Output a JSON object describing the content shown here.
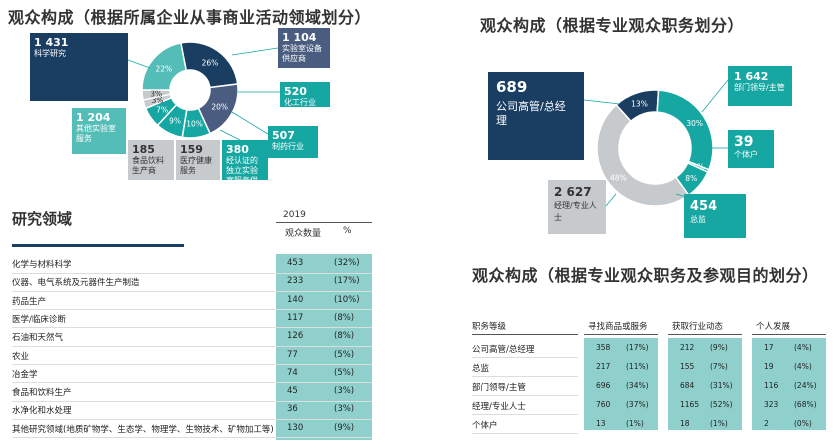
{
  "left_top": {
    "title": "观众构成（根据所属企业从事商业活动领域划分）",
    "boxes": [
      {
        "num": "1 431",
        "label": "科学研究"
      },
      {
        "num": "1 104",
        "label": "实验室设备供应商"
      },
      {
        "num": "520",
        "label": "化工行业"
      },
      {
        "num": "507",
        "label": "制药行业"
      },
      {
        "num": "380",
        "label": "经认证的独立实验室服务供应商"
      },
      {
        "num": "159",
        "label": "医疗健康服务"
      },
      {
        "num": "185",
        "label": "食品饮料生产商"
      },
      {
        "num": "1 204",
        "label": "其他实验室服务"
      }
    ]
  },
  "right_top": {
    "title": "观众构成（根据专业观众职务划分）",
    "boxes": [
      {
        "num": "689",
        "label": "公司高管/总经理"
      },
      {
        "num": "1 642",
        "label": "部门领导/主管"
      },
      {
        "num": "39",
        "label": "个体户"
      },
      {
        "num": "454",
        "label": "总监"
      },
      {
        "num": "2 627",
        "label": "经理/专业人士"
      }
    ]
  },
  "research": {
    "title": "研究领域",
    "year": "2019",
    "col_count": "观众数量",
    "col_pct": "%"
  },
  "right_bottom": {
    "title": "观众构成（根据专业观众职务及参观目的划分）",
    "headers": [
      "职务等级",
      "寻找商品或服务",
      "获取行业动态",
      "个人发展"
    ]
  },
  "chart_data": [
    {
      "type": "pie",
      "title": "观众构成（根据所属企业从事商业活动领域划分）",
      "categories": [
        "科学研究",
        "实验室设备供应商",
        "化工行业",
        "制药行业",
        "经认证的独立实验室服务供应商",
        "医疗健康服务",
        "食品饮料生产商",
        "其他实验室服务"
      ],
      "values": [
        1431,
        1104,
        520,
        507,
        380,
        159,
        185,
        1204
      ],
      "percent_labels": [
        "26%",
        "20%",
        "10%",
        "9%",
        "7%",
        "3%",
        "3%",
        "22%"
      ],
      "colors": [
        "#1a3d62",
        "#4a5d80",
        "#17a7a3",
        "#17a7a3",
        "#17a7a3",
        "#c7cacc",
        "#c7cacc",
        "#55bdb8"
      ]
    },
    {
      "type": "pie",
      "title": "观众构成（根据专业观众职务划分）",
      "categories": [
        "公司高管/总经理",
        "部门领导/主管",
        "个体户",
        "总监",
        "经理/专业人士"
      ],
      "values": [
        689,
        1642,
        39,
        454,
        2627
      ],
      "percent_labels": [
        "13%",
        "30%",
        "1%",
        "8%",
        "48%"
      ],
      "colors": [
        "#1a3d62",
        "#17a7a3",
        "#17a7a3",
        "#17a7a3",
        "#c7cacc"
      ]
    },
    {
      "type": "table",
      "title": "研究领域",
      "year": "2019",
      "columns": [
        "观众数量",
        "%"
      ],
      "rows": [
        {
          "name": "化学与材料科学",
          "count": "453",
          "pct": "(32%)"
        },
        {
          "name": "仪器、电气系统及元器件生产制造",
          "count": "233",
          "pct": "(17%)"
        },
        {
          "name": "药品生产",
          "count": "140",
          "pct": "(10%)"
        },
        {
          "name": "医学/临床诊断",
          "count": "117",
          "pct": "(8%)"
        },
        {
          "name": "石油和天然气",
          "count": "126",
          "pct": "(8%)"
        },
        {
          "name": "农业",
          "count": "77",
          "pct": "(5%)"
        },
        {
          "name": "冶金学",
          "count": "74",
          "pct": "(5%)"
        },
        {
          "name": "食品和饮料生产",
          "count": "45",
          "pct": "(3%)"
        },
        {
          "name": "水净化和水处理",
          "count": "36",
          "pct": "(3%)"
        },
        {
          "name": "其他研究领域(地质矿物学、生态学、物理学、生物技术、矿物加工等)",
          "count": "130",
          "pct": "(9%)"
        }
      ]
    },
    {
      "type": "table",
      "title": "观众构成（根据专业观众职务及参观目的划分）",
      "columns": [
        "职务等级",
        "寻找商品或服务",
        "获取行业动态",
        "个人发展"
      ],
      "rows": [
        {
          "name": "公司高管/总经理",
          "c1": "358",
          "p1": "(17%)",
          "c2": "212",
          "p2": "(9%)",
          "c3": "17",
          "p3": "(4%)"
        },
        {
          "name": "总监",
          "c1": "217",
          "p1": "(11%)",
          "c2": "155",
          "p2": "(7%)",
          "c3": "19",
          "p3": "(4%)"
        },
        {
          "name": "部门领导/主管",
          "c1": "696",
          "p1": "(34%)",
          "c2": "684",
          "p2": "(31%)",
          "c3": "116",
          "p3": "(24%)"
        },
        {
          "name": "经理/专业人士",
          "c1": "760",
          "p1": "(37%)",
          "c2": "1165",
          "p2": "(52%)",
          "c3": "323",
          "p3": "(68%)"
        },
        {
          "name": "个体户",
          "c1": "13",
          "p1": "(1%)",
          "c2": "18",
          "p2": "(1%)",
          "c3": "2",
          "p3": "(0%)"
        }
      ]
    }
  ]
}
